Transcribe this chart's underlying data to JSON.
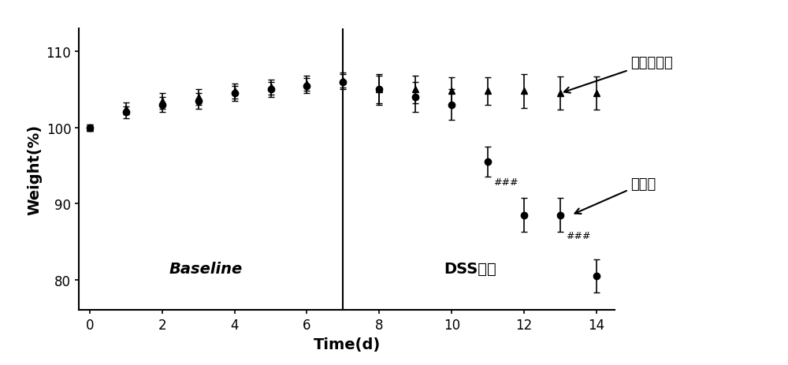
{
  "title": "",
  "xlabel": "Time(d)",
  "ylabel": "Weight(%)",
  "xlim": [
    -0.3,
    14.5
  ],
  "ylim": [
    76,
    113
  ],
  "yticks": [
    80,
    90,
    100,
    110
  ],
  "xticks": [
    0,
    2,
    4,
    6,
    8,
    10,
    12,
    14
  ],
  "vline_x": 7,
  "baseline_label": "Baseline",
  "dss_label": "DSS诱导",
  "control_label": "空白对照组",
  "model_label": "模型组",
  "control": {
    "x": [
      0,
      1,
      2,
      3,
      4,
      5,
      6,
      7,
      8,
      9,
      10,
      11,
      12,
      13,
      14
    ],
    "y": [
      100,
      102.5,
      103.5,
      104.0,
      104.8,
      105.3,
      105.8,
      106.2,
      105.0,
      105.0,
      104.8,
      104.8,
      104.8,
      104.5,
      104.5
    ],
    "yerr": [
      0.4,
      0.8,
      1.0,
      1.0,
      1.0,
      1.0,
      1.0,
      1.0,
      1.8,
      1.8,
      1.8,
      1.8,
      2.2,
      2.2,
      2.2
    ]
  },
  "model": {
    "x": [
      0,
      1,
      2,
      3,
      4,
      5,
      6,
      7,
      8,
      9,
      10,
      11,
      12,
      13,
      14
    ],
    "y": [
      100,
      102.0,
      103.0,
      103.5,
      104.5,
      105.0,
      105.5,
      106.0,
      105.0,
      104.0,
      103.0,
      95.5,
      88.5,
      88.5,
      80.5
    ],
    "yerr": [
      0.4,
      0.8,
      1.0,
      1.0,
      1.0,
      1.0,
      1.0,
      1.0,
      2.0,
      2.0,
      2.0,
      2.0,
      2.2,
      2.2,
      2.2
    ]
  },
  "annotation_11_label": "###",
  "annotation_13_label": "###",
  "background_color": "#ffffff",
  "line_color": "#000000",
  "marker_control": "^",
  "marker_model": "o",
  "figsize": [
    10.0,
    4.64
  ],
  "dpi": 100
}
